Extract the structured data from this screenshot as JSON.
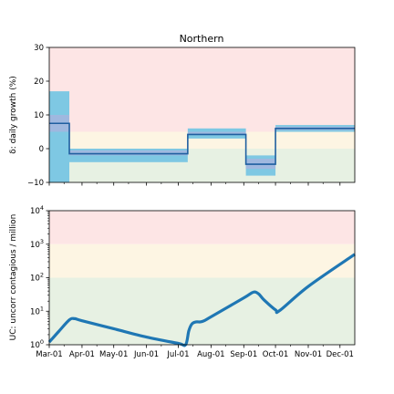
{
  "chart_data": [
    {
      "type": "step",
      "title": "Northern",
      "ylabel": "δ: daily growth (%)",
      "ylim": [
        -10,
        30
      ],
      "yticks": [
        "30",
        "20",
        "10",
        "0",
        "−10"
      ],
      "ytick_values": [
        30,
        20,
        10,
        0,
        -10
      ],
      "xlim": [
        "2020-03-01",
        "2020-12-15"
      ],
      "bands": [
        {
          "name": "red",
          "from": 5,
          "to": 30,
          "color": "#fde5e5"
        },
        {
          "name": "yellow",
          "from": 0,
          "to": 5,
          "color": "#fdf5e3"
        },
        {
          "name": "green",
          "from": -10,
          "to": 0,
          "color": "#e7f1e3"
        }
      ],
      "segments": [
        {
          "start": "2020-03-01",
          "end": "2020-03-20",
          "value": 7.5,
          "ci_outer": [
            -10,
            17
          ],
          "ci_inner": [
            5,
            10
          ]
        },
        {
          "start": "2020-03-20",
          "end": "2020-07-10",
          "value": -1.5,
          "ci_outer": [
            -4,
            0
          ],
          "ci_inner": [
            -2,
            -0.5
          ]
        },
        {
          "start": "2020-07-10",
          "end": "2020-09-03",
          "value": 4.2,
          "ci_outer": [
            3,
            6
          ],
          "ci_inner": [
            4,
            5
          ]
        },
        {
          "start": "2020-09-03",
          "end": "2020-10-01",
          "value": -4.6,
          "ci_outer": [
            -8,
            -2
          ],
          "ci_inner": [
            -6,
            -3
          ]
        },
        {
          "start": "2020-10-01",
          "end": "2020-12-15",
          "value": 6.0,
          "ci_outer": [
            5,
            7
          ],
          "ci_inner": [
            5.5,
            6.5
          ]
        }
      ],
      "colors": {
        "line": "#1f5fa0",
        "ci_outer": "#7ec8e3",
        "ci_inner": "#9fb8df"
      }
    },
    {
      "type": "line",
      "title": "",
      "ylabel": "UC: uncorr contagious / million",
      "yscale": "log",
      "ylim": [
        1,
        10000
      ],
      "ytick_values": [
        1,
        10,
        100,
        1000,
        10000
      ],
      "yticks_base": "10",
      "yticks_exp": [
        "0",
        "1",
        "2",
        "3",
        "4"
      ],
      "xlim": [
        "2020-03-01",
        "2020-12-15"
      ],
      "bands": [
        {
          "name": "red",
          "from": 1000,
          "to": 10000,
          "color": "#fde5e5"
        },
        {
          "name": "yellow",
          "from": 100,
          "to": 1000,
          "color": "#fdf5e3"
        },
        {
          "name": "green",
          "from": 1,
          "to": 100,
          "color": "#e7f1e3"
        }
      ],
      "x": [
        "2020-03-01",
        "2020-03-10",
        "2020-03-20",
        "2020-03-25",
        "2020-04-01",
        "2020-05-01",
        "2020-06-01",
        "2020-07-01",
        "2020-07-08",
        "2020-07-11",
        "2020-07-14",
        "2020-07-18",
        "2020-07-22",
        "2020-07-26",
        "2020-08-01",
        "2020-09-01",
        "2020-09-10",
        "2020-09-15",
        "2020-09-20",
        "2020-10-01",
        "2020-10-05",
        "2020-11-01",
        "2020-12-15"
      ],
      "y": [
        1.2,
        2.5,
        5.5,
        6.0,
        5.2,
        3.0,
        1.7,
        1.1,
        1.0,
        2.6,
        4.2,
        4.8,
        4.8,
        5.3,
        6.8,
        25,
        37,
        33,
        22,
        11,
        10.5,
        55,
        500
      ],
      "colors": {
        "line": "#1f77b4"
      }
    }
  ],
  "xaxis": {
    "ticks": [
      "Mar-01",
      "Apr-01",
      "May-01",
      "Jun-01",
      "Jul-01",
      "Aug-01",
      "Sep-01",
      "Oct-01",
      "Nov-01",
      "Dec-01"
    ],
    "tick_dates": [
      "2020-03-01",
      "2020-04-01",
      "2020-05-01",
      "2020-06-01",
      "2020-07-01",
      "2020-08-01",
      "2020-09-01",
      "2020-10-01",
      "2020-11-01",
      "2020-12-01"
    ],
    "minor_dates": [
      "2020-03-15",
      "2020-04-15",
      "2020-05-15",
      "2020-06-15",
      "2020-07-15",
      "2020-08-15",
      "2020-09-15",
      "2020-10-15",
      "2020-11-15"
    ]
  }
}
